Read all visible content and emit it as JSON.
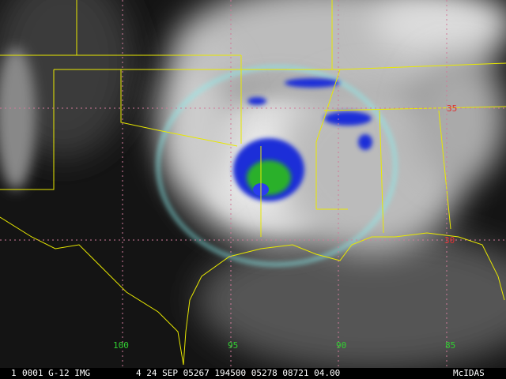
{
  "grid_labels": {
    "latitude": [
      "35",
      "30"
    ],
    "longitude": [
      "100",
      "95",
      "90",
      "85"
    ]
  },
  "status_bar": {
    "frame": "1",
    "source": "0001 G-12 IMG",
    "info": "4 24 SEP 05267 194500 05278 08721 04.00",
    "brand": "McIDAS"
  }
}
